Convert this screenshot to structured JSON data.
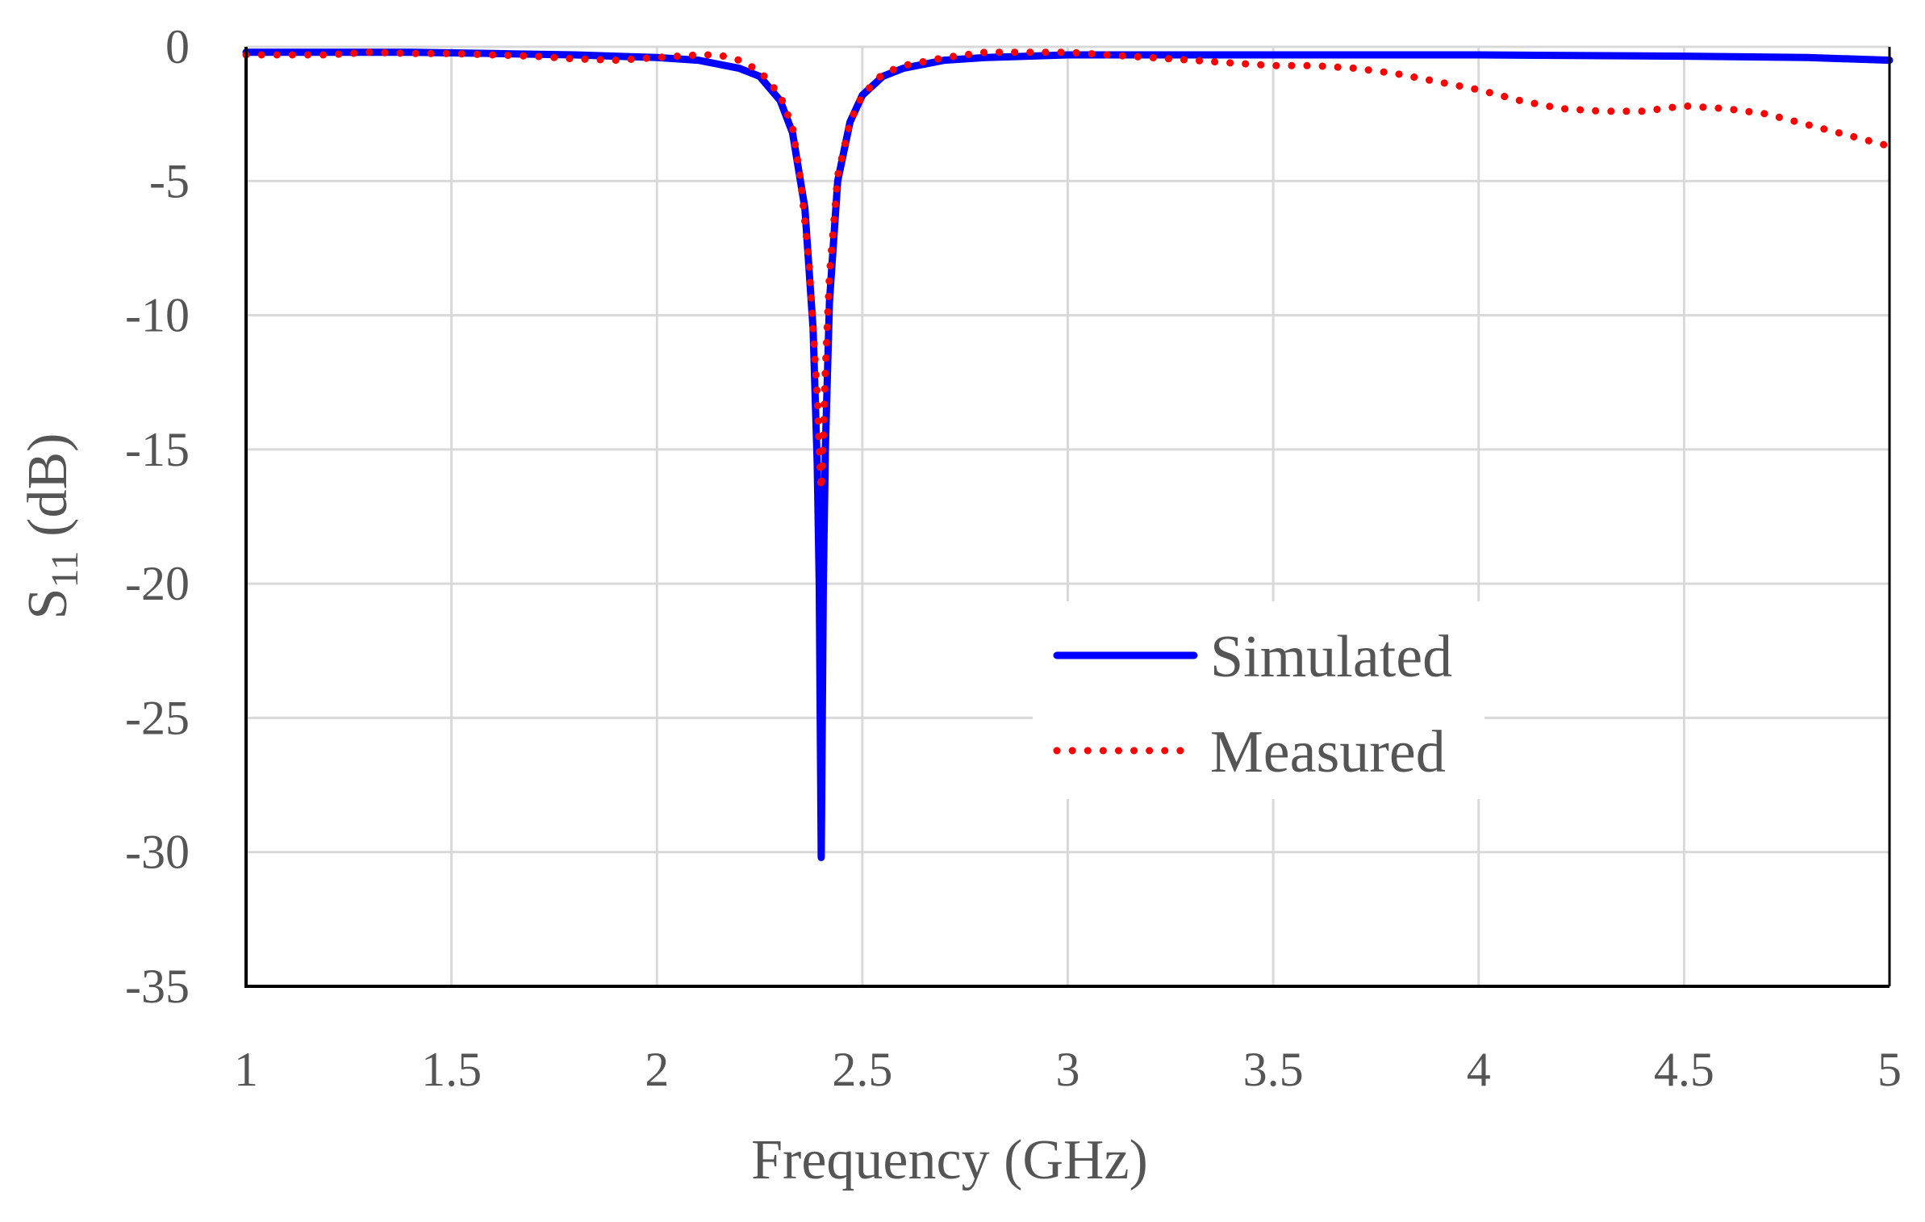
{
  "chart_data": {
    "type": "line",
    "title": "",
    "xlabel": "Frequency (GHz)",
    "ylabel_main": "S",
    "ylabel_sub": "11",
    "ylabel_suffix": " (dB)",
    "xlim": [
      1,
      5
    ],
    "ylim": [
      -35,
      0
    ],
    "grid": true,
    "legend_position": "center-right",
    "x_ticks": [
      1,
      1.5,
      2,
      2.5,
      3,
      3.5,
      4,
      4.5,
      5
    ],
    "x_tick_labels": [
      "1",
      "1.5",
      "2",
      "2.5",
      "3",
      "3.5",
      "4",
      "4.5",
      "5"
    ],
    "y_ticks": [
      0,
      -5,
      -10,
      -15,
      -20,
      -25,
      -30,
      -35
    ],
    "y_tick_labels": [
      "0",
      "-5",
      "-10",
      "-15",
      "-20",
      "-25",
      "-30",
      "-35"
    ],
    "series": [
      {
        "name": "Simulated",
        "color": "#0000ff",
        "style": "solid",
        "x": [
          1.0,
          1.2,
          1.4,
          1.6,
          1.8,
          2.0,
          2.1,
          2.2,
          2.25,
          2.3,
          2.33,
          2.36,
          2.38,
          2.39,
          2.395,
          2.4,
          2.405,
          2.41,
          2.42,
          2.44,
          2.47,
          2.5,
          2.55,
          2.6,
          2.7,
          2.8,
          3.0,
          3.2,
          3.5,
          4.0,
          4.5,
          4.8,
          5.0
        ],
        "values": [
          -0.2,
          -0.2,
          -0.2,
          -0.25,
          -0.3,
          -0.4,
          -0.5,
          -0.8,
          -1.1,
          -2.0,
          -3.2,
          -6.0,
          -10.5,
          -15.5,
          -20.0,
          -30.2,
          -20.0,
          -15.0,
          -9.5,
          -5.0,
          -2.8,
          -1.8,
          -1.1,
          -0.8,
          -0.5,
          -0.4,
          -0.3,
          -0.3,
          -0.3,
          -0.3,
          -0.35,
          -0.4,
          -0.5
        ]
      },
      {
        "name": "Measured",
        "color": "#ff0000",
        "style": "dotted",
        "x": [
          1.0,
          1.1,
          1.2,
          1.3,
          1.4,
          1.5,
          1.6,
          1.7,
          1.8,
          1.9,
          2.0,
          2.1,
          2.15,
          2.2,
          2.25,
          2.3,
          2.33,
          2.35,
          2.37,
          2.38,
          2.39,
          2.395,
          2.4,
          2.405,
          2.41,
          2.42,
          2.44,
          2.47,
          2.5,
          2.55,
          2.6,
          2.7,
          2.8,
          2.9,
          3.0,
          3.1,
          3.2,
          3.3,
          3.4,
          3.5,
          3.6,
          3.7,
          3.8,
          3.9,
          4.0,
          4.1,
          4.2,
          4.3,
          4.4,
          4.5,
          4.6,
          4.7,
          4.8,
          4.9,
          5.0
        ],
        "values": [
          -0.3,
          -0.3,
          -0.3,
          -0.2,
          -0.25,
          -0.25,
          -0.3,
          -0.35,
          -0.45,
          -0.5,
          -0.4,
          -0.3,
          -0.3,
          -0.5,
          -0.9,
          -1.8,
          -3.0,
          -5.0,
          -8.0,
          -10.5,
          -13.0,
          -15.0,
          -16.5,
          -14.5,
          -12.0,
          -8.5,
          -4.8,
          -2.8,
          -1.8,
          -1.0,
          -0.7,
          -0.4,
          -0.2,
          -0.2,
          -0.2,
          -0.3,
          -0.4,
          -0.5,
          -0.6,
          -0.7,
          -0.7,
          -0.8,
          -1.0,
          -1.3,
          -1.6,
          -2.0,
          -2.3,
          -2.4,
          -2.4,
          -2.2,
          -2.3,
          -2.5,
          -2.9,
          -3.3,
          -3.7
        ]
      }
    ]
  }
}
